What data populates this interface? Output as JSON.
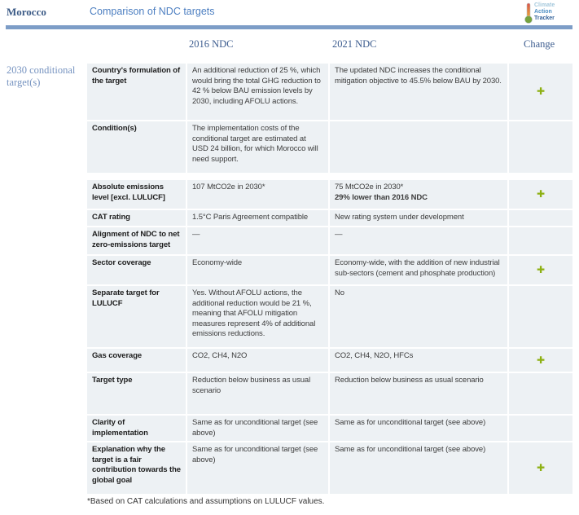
{
  "header": {
    "country": "Morocco",
    "title": "Comparison of NDC targets",
    "logo": {
      "line1": "Climate",
      "line2": "Action",
      "line3": "Tracker"
    }
  },
  "columns": {
    "col2016": "2016 NDC",
    "col2021": "2021 NDC",
    "change": "Change"
  },
  "sidebar_label": "2030 conditional target(s)",
  "rows": [
    {
      "label": "Country's formulation of the target",
      "ndc2016": "An additional reduction of 25 %, which would bring the total GHG reduction to 42 % below BAU emission levels by 2030, including AFOLU actions.",
      "ndc2021": "The updated NDC increases the conditional mitigation objective to 45.5% below BAU by 2030.",
      "change": true
    },
    {
      "label": "Condition(s)",
      "ndc2016": "The implementation costs of the conditional target are estimated at USD 24 billion, for which Morocco will need support.",
      "ndc2021": "",
      "change": false
    },
    {
      "label": "Absolute emissions level [excl. LULUCF]",
      "ndc2016": "107 MtCO2e in 2030*",
      "ndc2021": "75 MtCO2e in 2030*",
      "ndc2021_bold": "29% lower than 2016 NDC",
      "change": true
    },
    {
      "label": "CAT rating",
      "ndc2016": "1.5°C Paris Agreement compatible",
      "ndc2021": "New rating system under development",
      "change": false
    },
    {
      "label": "Alignment of NDC to net zero-emissions target",
      "ndc2016": "—",
      "ndc2021": "—",
      "change": false
    },
    {
      "label": "Sector coverage",
      "ndc2016": "Economy-wide",
      "ndc2021": "Economy-wide, with the addition of new industrial sub-sectors (cement and phosphate production)",
      "change": true
    },
    {
      "label": "Separate target for LULUCF",
      "ndc2016": "Yes. Without AFOLU actions, the additional reduction would be 21 %, meaning that AFOLU mitigation measures represent 4% of additional emissions reductions.",
      "ndc2021": "No",
      "change": false
    },
    {
      "label": "Gas coverage",
      "ndc2016": "CO2, CH4, N2O",
      "ndc2021": "CO2, CH4, N2O, HFCs",
      "change": true
    },
    {
      "label": "Target type",
      "ndc2016": "Reduction below business as usual scenario",
      "ndc2021": "Reduction below business as usual scenario",
      "change": false
    },
    {
      "label": "Clarity of implementation",
      "ndc2016": "Same as for unconditional target (see above)",
      "ndc2021": "Same as for unconditional target (see above)",
      "change": false
    },
    {
      "label": "Explanation why the target is a fair contribution towards the global goal",
      "ndc2016": "Same as for unconditional target (see above)",
      "ndc2021": "Same as for unconditional target (see above)",
      "change": true
    }
  ],
  "footnote": "*Based on CAT calculations and assumptions on LULUCF values.",
  "icons": {
    "plus": "✚"
  },
  "colors": {
    "divider_bar": "#7d9dc7",
    "cell_background": "#edf1f4",
    "plus_green": "#8db012",
    "heading_blue": "#3d5d8f",
    "title_blue": "#4d7fc1",
    "sidebar_blue": "#7693c0"
  }
}
